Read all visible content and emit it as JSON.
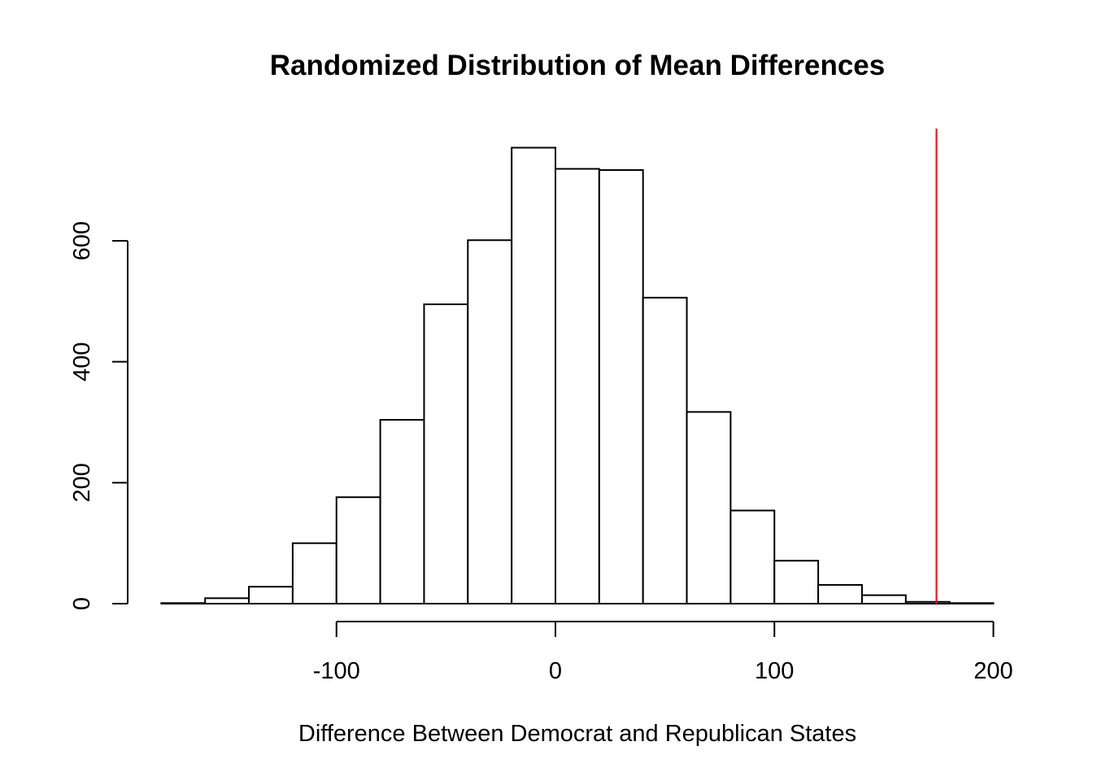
{
  "chart_data": {
    "type": "bar",
    "title": "Randomized Distribution of Mean Differences",
    "xlabel": "Difference Between Democrat and Republican States",
    "ylabel": "",
    "bin_edges": [
      -180,
      -160,
      -140,
      -120,
      -100,
      -80,
      -60,
      -40,
      -20,
      0,
      20,
      40,
      60,
      80,
      100,
      120,
      140,
      160,
      180,
      200
    ],
    "counts": [
      1,
      9,
      28,
      100,
      176,
      304,
      495,
      601,
      754,
      719,
      717,
      506,
      317,
      154,
      71,
      31,
      14,
      3,
      1
    ],
    "xlim": [
      -180,
      200
    ],
    "ylim": [
      0,
      754
    ],
    "x_ticks": [
      -100,
      0,
      100,
      200
    ],
    "x_tick_labels": [
      "-100",
      "0",
      "100",
      "200"
    ],
    "y_ticks": [
      0,
      200,
      400,
      600
    ],
    "y_tick_labels": [
      "0",
      "200",
      "400",
      "600"
    ],
    "reference_line": {
      "x": 174,
      "color": "#ff0000"
    },
    "bar_fill": "#ffffff",
    "bar_stroke": "#000000",
    "grid": false
  }
}
